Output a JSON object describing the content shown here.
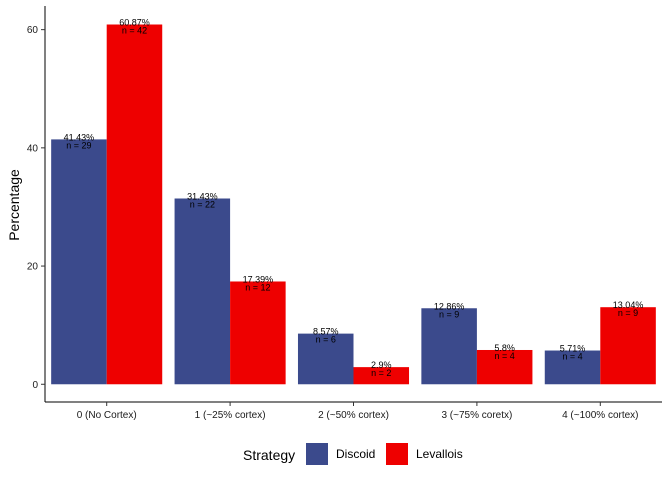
{
  "chart_data": {
    "type": "bar",
    "title": "",
    "xlabel": "",
    "ylabel": "Percentage",
    "ylim": [
      -3,
      64
    ],
    "yticks": [
      0,
      20,
      40,
      60
    ],
    "grid": false,
    "legend_position": "bottom",
    "legend_title": "Strategy",
    "categories": [
      "0 (No Cortex)",
      "1 (~25% cortex)",
      "2 (~50% cortex)",
      "3 (~75% coretx)",
      "4 (~100% cortex)"
    ],
    "series": [
      {
        "name": "Discoid",
        "color": "#3b4a8c",
        "values": [
          41.43,
          31.43,
          8.57,
          12.86,
          5.71
        ],
        "pct_labels": [
          "41.43%",
          "31.43%",
          "8.57%",
          "12.86%",
          "5.71%"
        ],
        "n_labels": [
          "n = 29",
          "n = 22",
          "n = 6",
          "n = 9",
          "n = 4"
        ]
      },
      {
        "name": "Levallois",
        "color": "#ee0000",
        "values": [
          60.87,
          17.39,
          2.9,
          5.8,
          13.04
        ],
        "pct_labels": [
          "60.87%",
          "17.39%",
          "2.9%",
          "5.8%",
          "13.04%"
        ],
        "n_labels": [
          "n = 42",
          "n = 12",
          "n = 2",
          "n = 4",
          "n = 9"
        ]
      }
    ]
  }
}
